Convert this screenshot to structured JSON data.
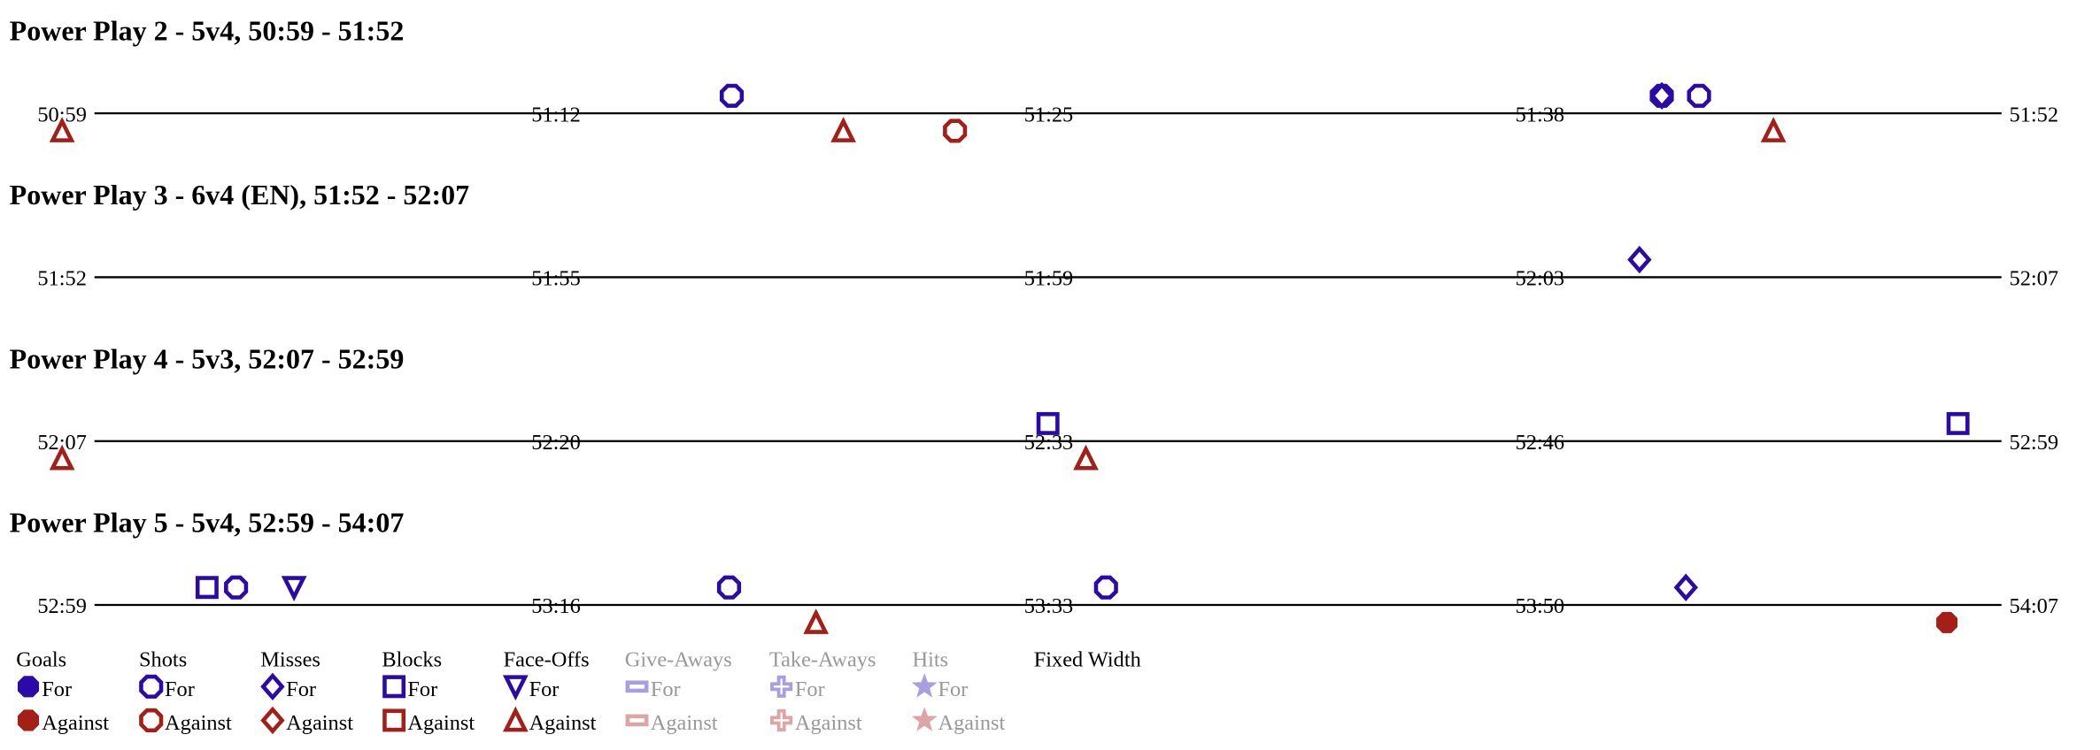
{
  "colors": {
    "for": "#2b0aa8",
    "against": "#a31f17",
    "for_faded": "#a99fe0",
    "against_faded": "#dba6a3",
    "faded_text": "#999999",
    "axis": "#000000"
  },
  "chart_data": {
    "type": "scatter",
    "rows": [
      {
        "title": "Power Play 2 - 5v4, 50:59 - 51:52",
        "start": "50:59",
        "end": "51:52",
        "ticks": [
          "50:59",
          "51:12",
          "51:25",
          "51:38",
          "51:52"
        ],
        "events": [
          {
            "type": "faceoff",
            "side": "against",
            "time": "50:59"
          },
          {
            "type": "shot",
            "side": "for",
            "time": "51:17"
          },
          {
            "type": "faceoff",
            "side": "against",
            "time": "51:20"
          },
          {
            "type": "shot",
            "side": "against",
            "time": "51:23"
          },
          {
            "type": "shot",
            "side": "for",
            "time": "51:42"
          },
          {
            "type": "miss",
            "side": "for",
            "time": "51:42"
          },
          {
            "type": "shot",
            "side": "for",
            "time": "51:43"
          },
          {
            "type": "faceoff",
            "side": "against",
            "time": "51:45"
          }
        ]
      },
      {
        "title": "Power Play 3 - 6v4 (EN), 51:52 - 52:07",
        "start": "51:52",
        "end": "52:07",
        "ticks": [
          "51:52",
          "51:55",
          "51:59",
          "52:03",
          "52:07"
        ],
        "events": [
          {
            "type": "miss",
            "side": "for",
            "time": "52:04"
          }
        ]
      },
      {
        "title": "Power Play 4 - 5v3, 52:07 - 52:59",
        "start": "52:07",
        "end": "52:59",
        "ticks": [
          "52:07",
          "52:20",
          "52:33",
          "52:46",
          "52:59"
        ],
        "events": [
          {
            "type": "faceoff",
            "side": "against",
            "time": "52:07"
          },
          {
            "type": "block",
            "side": "for",
            "time": "52:33"
          },
          {
            "type": "faceoff",
            "side": "against",
            "time": "52:34"
          },
          {
            "type": "block",
            "side": "for",
            "time": "52:57"
          }
        ]
      },
      {
        "title": "Power Play 5 - 5v4, 52:59 - 54:07",
        "start": "52:59",
        "end": "54:07",
        "ticks": [
          "52:59",
          "53:16",
          "53:33",
          "53:50",
          "54:07"
        ],
        "events": [
          {
            "type": "block",
            "side": "for",
            "time": "53:04"
          },
          {
            "type": "shot",
            "side": "for",
            "time": "53:05"
          },
          {
            "type": "faceoff",
            "side": "for",
            "time": "53:07"
          },
          {
            "type": "shot",
            "side": "for",
            "time": "53:22"
          },
          {
            "type": "faceoff",
            "side": "against",
            "time": "53:25"
          },
          {
            "type": "shot",
            "side": "for",
            "time": "53:35"
          },
          {
            "type": "miss",
            "side": "for",
            "time": "53:55"
          },
          {
            "type": "goal",
            "side": "against",
            "time": "54:04"
          }
        ]
      }
    ],
    "legend": {
      "items": [
        {
          "type": "goal",
          "label": "Goals",
          "active": true
        },
        {
          "type": "shot",
          "label": "Shots",
          "active": true
        },
        {
          "type": "miss",
          "label": "Misses",
          "active": true
        },
        {
          "type": "block",
          "label": "Blocks",
          "active": true
        },
        {
          "type": "faceoff",
          "label": "Face-Offs",
          "active": true
        },
        {
          "type": "giveaway",
          "label": "Give-Aways",
          "active": false
        },
        {
          "type": "takeaway",
          "label": "Take-Aways",
          "active": false
        },
        {
          "type": "hit",
          "label": "Hits",
          "active": false
        }
      ],
      "for_label": "For",
      "against_label": "Against",
      "fixed_width_label": "Fixed Width"
    }
  }
}
